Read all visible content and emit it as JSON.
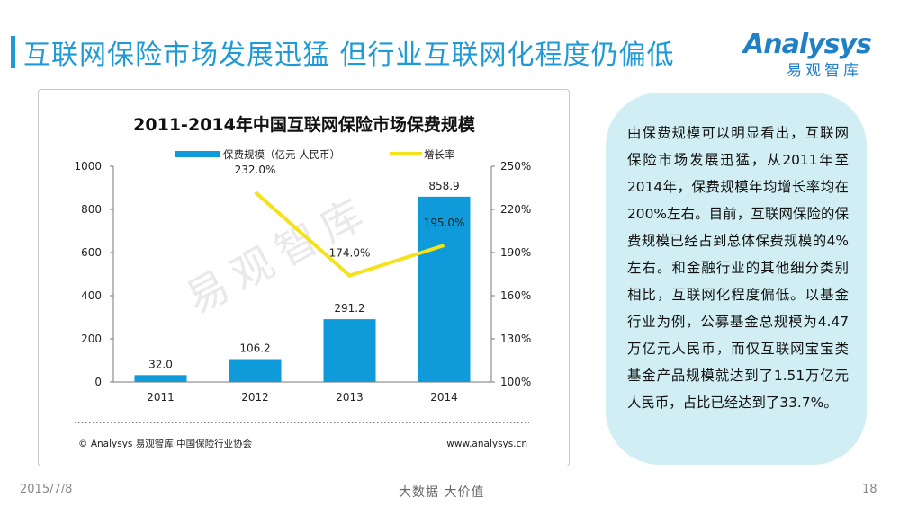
{
  "slide": {
    "title": "互联网保险市场发展迅猛  但行业互联网化程度仍偏低",
    "logo_text": "Analysys",
    "logo_cn": "易观智库",
    "accent_color": "#1f9ad6"
  },
  "textbox": {
    "text": "由保费规模可以明显看出，互联网保险市场发展迅猛，从2011年至2014年，保费规模年均增长率均在200%左右。目前，互联网保险的保费规模已经占到总体保费规模的4%左右。和金融行业的其他细分类别相比，互联网化程度偏低。以基金行业为例，公募基金总规模为4.47万亿元人民币，而仅互联网宝宝类基金产品规模就达到了1.51万亿元人民币，占比已经达到了33.7%。",
    "background": "#d0eef3"
  },
  "footer": {
    "date": "2015/7/8",
    "tagline": "大数据   大价值",
    "page": "18"
  },
  "chart_data": {
    "type": "bar",
    "title": "2011-2014年中国互联网保险市场保费规模",
    "categories": [
      "2011",
      "2012",
      "2013",
      "2014"
    ],
    "series": [
      {
        "name": "保费规模（亿元 人民币）",
        "type": "bar",
        "axis": "left",
        "color": "#0f9ad9",
        "values": [
          32.0,
          106.2,
          291.2,
          858.9
        ],
        "labels": [
          "32.0",
          "106.2",
          "291.2",
          "858.9"
        ]
      },
      {
        "name": "增长率",
        "type": "line",
        "axis": "right",
        "color": "#f5e21a",
        "values": [
          null,
          232.0,
          174.0,
          195.0
        ],
        "labels": [
          "",
          "232.0%",
          "174.0%",
          "195.0%"
        ]
      }
    ],
    "y_left": {
      "range": [
        0,
        1000
      ],
      "ticks": [
        "0",
        "200",
        "400",
        "600",
        "800",
        "1000"
      ]
    },
    "y_right": {
      "range": [
        100,
        250
      ],
      "ticks": [
        "100%",
        "130%",
        "160%",
        "190%",
        "220%",
        "250%"
      ]
    },
    "legend_position": "top",
    "grid": false,
    "watermark": "易观智库",
    "source": "© Analysys 易观智库·中国保险行业协会",
    "website": "www.analysys.cn"
  }
}
